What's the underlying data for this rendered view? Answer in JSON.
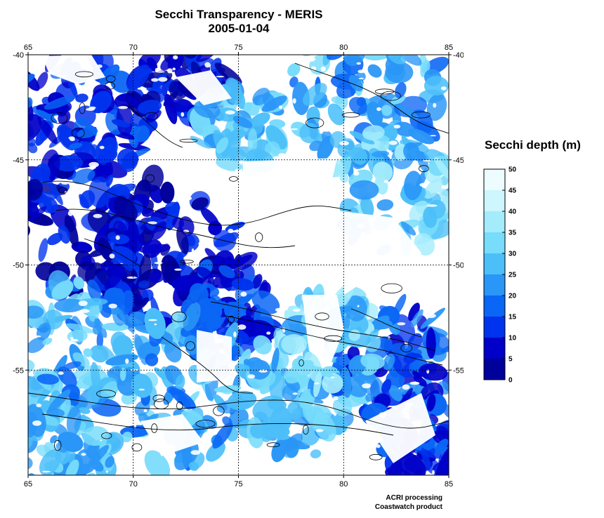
{
  "title": "Secchi Transparency - MERIS",
  "subtitle": "2005-01-04",
  "map": {
    "lon_range": [
      65,
      85
    ],
    "lat_range": [
      -60,
      -40
    ],
    "lon_ticks": [
      "65",
      "70",
      "75",
      "80",
      "85"
    ],
    "lat_ticks": [
      "-40",
      "-45",
      "-50",
      "-55"
    ],
    "grid": "dashed",
    "no_data_color": "#ffffff",
    "contour_color": "#000000"
  },
  "legend": {
    "title": "Secchi depth (m)",
    "ticks": [
      "0",
      "5",
      "10",
      "15",
      "20",
      "25",
      "30",
      "35",
      "40",
      "45",
      "50"
    ],
    "colors": [
      "#00009a",
      "#0000c8",
      "#0033ee",
      "#0a66f5",
      "#2a96f7",
      "#4cbff9",
      "#78dcfb",
      "#a4ecfc",
      "#cdf6fe",
      "#ecfcff"
    ]
  },
  "credits": {
    "line1": "ACRI processing",
    "line2": "Coastwatch product"
  }
}
